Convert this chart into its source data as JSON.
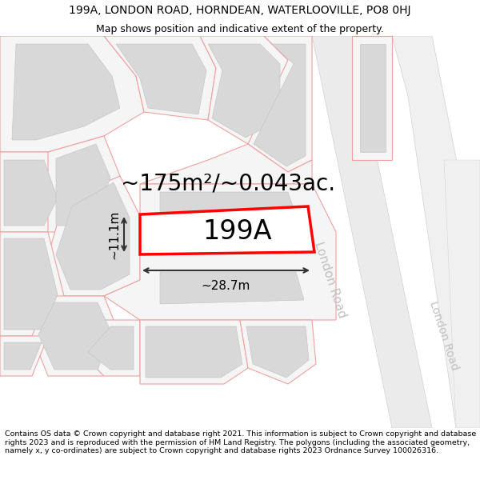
{
  "title_line1": "199A, LONDON ROAD, HORNDEAN, WATERLOOVILLE, PO8 0HJ",
  "title_line2": "Map shows position and indicative extent of the property.",
  "area_label": "~175m²/~0.043ac.",
  "property_label": "199A",
  "width_label": "~28.7m",
  "height_label": "~11.1m",
  "road_label1": "London Road",
  "road_label2": "London Road",
  "footer_text": "Contains OS data © Crown copyright and database right 2021. This information is subject to Crown copyright and database rights 2023 and is reproduced with the permission of HM Land Registry. The polygons (including the associated geometry, namely x, y co-ordinates) are subject to Crown copyright and database rights 2023 Ordnance Survey 100026316.",
  "bg_color": "#ffffff",
  "map_bg": "#ffffff",
  "road_fill": "#ebebeb",
  "building_fill": "#d8d8d8",
  "plot_outline_color": "#f0a0a0",
  "property_edge_color": "#ff0000",
  "property_fill": "#ffffff",
  "road_text_color": "#c0c0c0",
  "title_fontsize": 10,
  "subtitle_fontsize": 9,
  "area_fontsize": 20,
  "property_fontsize": 24,
  "dim_fontsize": 11,
  "road_fontsize": 11,
  "footer_fontsize": 6.8
}
